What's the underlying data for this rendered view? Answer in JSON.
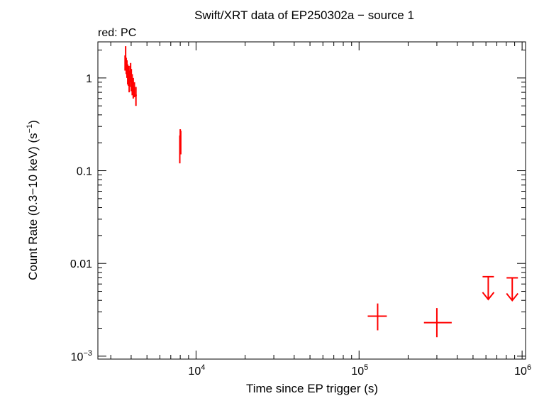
{
  "chart_data": {
    "type": "scatter",
    "title": "Swift/XRT data of EP250302a − source 1",
    "legend_text": "red: PC",
    "xlabel": "Time since EP trigger (s)",
    "ylabel_main": "Count Rate (0.3−10 keV) (s",
    "ylabel_sup": "−1",
    "ylabel_end": ")",
    "x_scale": "log",
    "y_scale": "log",
    "xlim": [
      2500,
      1050000
    ],
    "ylim": [
      0.00093,
      2.45
    ],
    "x_ticks": [
      {
        "value": 10000,
        "base": "10",
        "exp": "4"
      },
      {
        "value": 100000,
        "base": "10",
        "exp": "5"
      },
      {
        "value": 1000000,
        "base": "10",
        "exp": "6"
      }
    ],
    "y_ticks": [
      {
        "value": 0.001,
        "base": "10",
        "exp": "−3"
      },
      {
        "value": 0.01,
        "label": "0.01"
      },
      {
        "value": 0.1,
        "label": "0.1"
      },
      {
        "value": 1,
        "label": "1"
      }
    ],
    "grid": false,
    "color": "#ff0000",
    "series": [
      {
        "points": [
          {
            "x": 3670,
            "y": 1.45,
            "xerr": [
              3650,
              3690
            ],
            "yerr": [
              1.2,
              1.75
            ]
          },
          {
            "x": 3700,
            "y": 1.6,
            "xerr": [
              3690,
              3710
            ],
            "yerr": [
              1.3,
              2.2
            ]
          },
          {
            "x": 3730,
            "y": 1.35,
            "xerr": [
              3710,
              3750
            ],
            "yerr": [
              1.1,
              1.65
            ]
          },
          {
            "x": 3770,
            "y": 1.25,
            "xerr": [
              3750,
              3790
            ],
            "yerr": [
              1.0,
              1.55
            ]
          },
          {
            "x": 3810,
            "y": 1.1,
            "xerr": [
              3790,
              3830
            ],
            "yerr": [
              0.85,
              1.4
            ]
          },
          {
            "x": 3850,
            "y": 1.05,
            "xerr": [
              3830,
              3870
            ],
            "yerr": [
              0.82,
              1.35
            ]
          },
          {
            "x": 3890,
            "y": 0.9,
            "xerr": [
              3870,
              3910
            ],
            "yerr": [
              0.7,
              1.2
            ]
          },
          {
            "x": 3930,
            "y": 1.05,
            "xerr": [
              3910,
              3950
            ],
            "yerr": [
              0.8,
              1.35
            ]
          },
          {
            "x": 3970,
            "y": 1.15,
            "xerr": [
              3950,
              3990
            ],
            "yerr": [
              0.9,
              1.45
            ]
          },
          {
            "x": 4010,
            "y": 0.95,
            "xerr": [
              3990,
              4030
            ],
            "yerr": [
              0.72,
              1.25
            ]
          },
          {
            "x": 4060,
            "y": 0.85,
            "xerr": [
              4030,
              4090
            ],
            "yerr": [
              0.65,
              1.1
            ]
          },
          {
            "x": 4120,
            "y": 0.78,
            "xerr": [
              4090,
              4150
            ],
            "yerr": [
              0.6,
              1.0
            ]
          },
          {
            "x": 4190,
            "y": 0.75,
            "xerr": [
              4150,
              4230
            ],
            "yerr": [
              0.62,
              0.9
            ]
          },
          {
            "x": 4280,
            "y": 0.65,
            "xerr": [
              4230,
              4330
            ],
            "yerr": [
              0.5,
              0.8
            ]
          },
          {
            "x": 7950,
            "y": 0.19,
            "xerr": [
              7900,
              8000
            ],
            "yerr": [
              0.12,
              0.24
            ]
          },
          {
            "x": 8000,
            "y": 0.22,
            "xerr": [
              7970,
              8030
            ],
            "yerr": [
              0.17,
              0.28
            ]
          },
          {
            "x": 8060,
            "y": 0.2,
            "xerr": [
              8020,
              8100
            ],
            "yerr": [
              0.15,
              0.27
            ]
          },
          {
            "x": 130000,
            "y": 0.0027,
            "xerr": [
              113000,
              148000
            ],
            "yerr": [
              0.0019,
              0.0037
            ]
          },
          {
            "x": 300000,
            "y": 0.0023,
            "xerr": [
              250000,
              370000
            ],
            "yerr": [
              0.0016,
              0.0033
            ]
          }
        ],
        "upper_limits": [
          {
            "x": 620000,
            "y": 0.0072
          },
          {
            "x": 870000,
            "y": 0.007
          }
        ]
      }
    ]
  }
}
